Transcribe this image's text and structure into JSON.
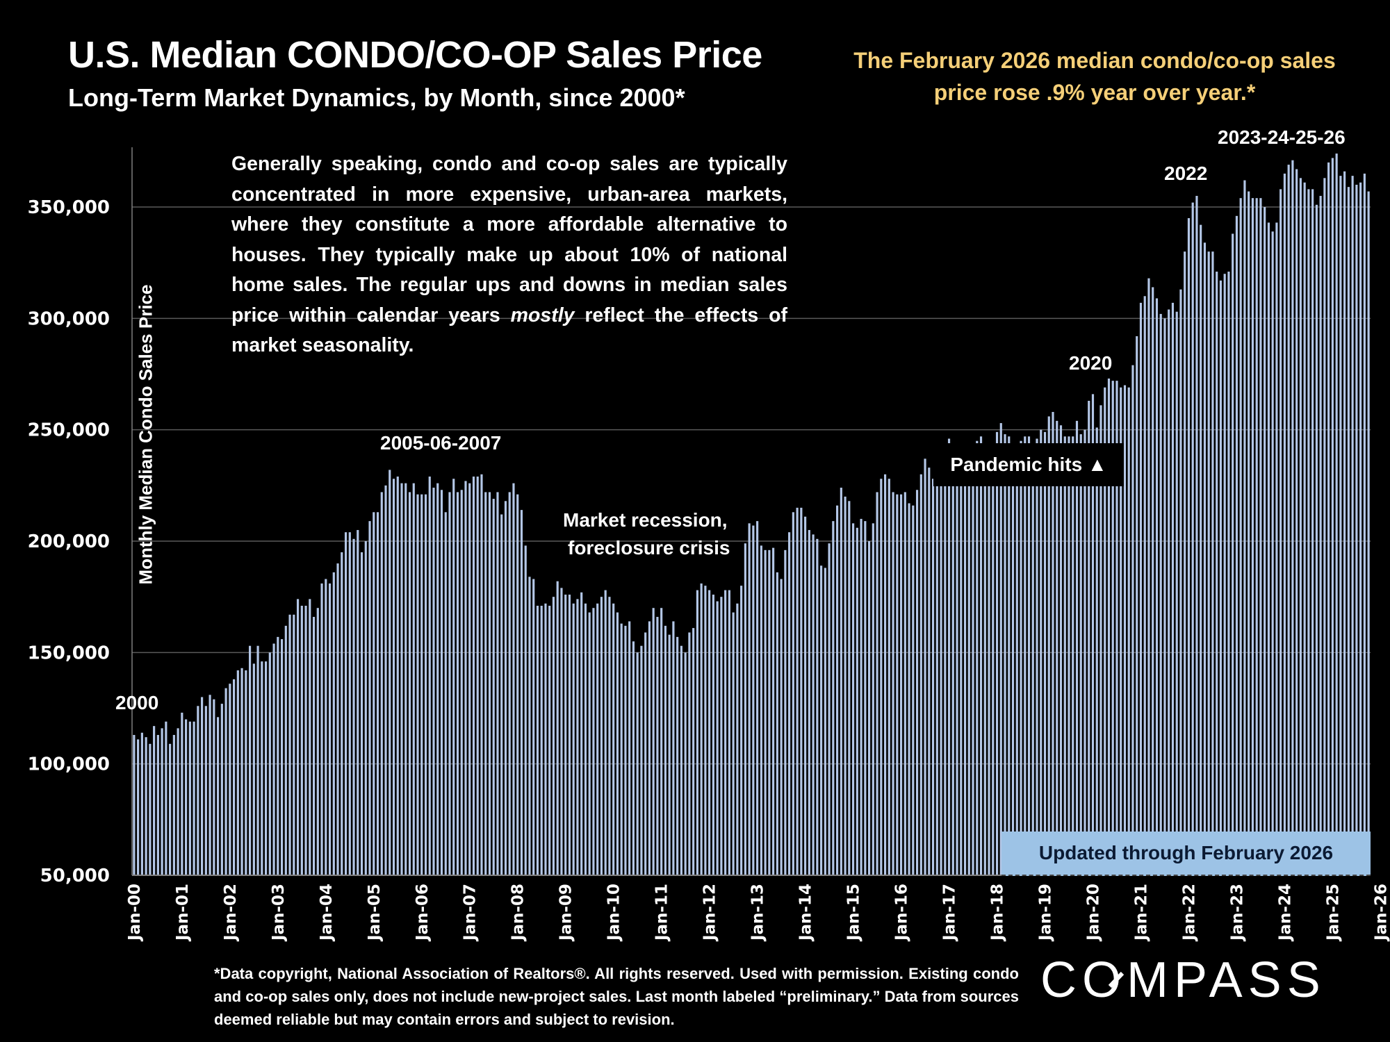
{
  "header": {
    "title": "U.S. Median CONDO/CO-OP Sales Price",
    "subtitle": "Long-Term Market Dynamics, by Month, since 2000*",
    "headline_line1": "The February 2026 median condo/co-op sales",
    "headline_line2": "price rose .9% year over year.*",
    "headline_color": "#f5cf78"
  },
  "note": {
    "text_before_italic": "Generally speaking, condo and co-op sales are typically concentrated in more expensive, urban-area markets, where they constitute a more affordable alternative to houses. They typically make up about 10% of national home sales. The regular ups and downs in median sales price within calendar years ",
    "italic": "mostly",
    "text_after_italic": " reflect the effects of market seasonality."
  },
  "annotations": {
    "y2000": "2000",
    "peak_2005_2007": "2005-06-2007",
    "recession": "Market recession,",
    "recession_line2": "foreclosure crisis",
    "pandemic": "Pandemic hits",
    "pandemic_icon": "▲",
    "y2020": "2020",
    "y2022": "2022",
    "y2023_26": "2023-24-25-26",
    "updated": "Updated through February 2026"
  },
  "footer": {
    "text": "*Data copyright, National Association of Realtors®. All rights reserved. Used with permission. Existing condo and co-op sales only, does  not include new-project sales. Last month labeled “preliminary.” Data from sources deemed reliable but may contain errors and subject to revision."
  },
  "brand": {
    "logo_text": "COMPASS"
  },
  "chart_data": {
    "type": "bar",
    "title": "U.S. Median CONDO/CO-OP Sales Price",
    "xlabel": "",
    "ylabel": "Monthly Median Condo Sales Price",
    "ylim": [
      50000,
      375000
    ],
    "yticks": [
      50000,
      100000,
      150000,
      200000,
      250000,
      300000,
      350000
    ],
    "ytick_labels": [
      "50,000",
      "100,000",
      "150,000",
      "200,000",
      "250,000",
      "300,000",
      "350,000"
    ],
    "xtick_labels": [
      "Jan-00",
      "Jan-01",
      "Jan-02",
      "Jan-03",
      "Jan-04",
      "Jan-05",
      "Jan-06",
      "Jan-07",
      "Jan-08",
      "Jan-09",
      "Jan-10",
      "Jan-11",
      "Jan-12",
      "Jan-13",
      "Jan-14",
      "Jan-15",
      "Jan-16",
      "Jan-17",
      "Jan-18",
      "Jan-19",
      "Jan-20",
      "Jan-21",
      "Jan-22",
      "Jan-23",
      "Jan-24",
      "Jan-25",
      "Jan-26"
    ],
    "grid": true,
    "bar_color": "#b4c7e7",
    "start_month": "Jan-00",
    "end_month": "Feb-26",
    "series": [
      {
        "name": "Monthly Median Condo Sales Price",
        "values": [
          113000,
          111000,
          114000,
          112000,
          109000,
          117000,
          113000,
          116000,
          119000,
          109000,
          113000,
          116000,
          123000,
          120000,
          119000,
          119000,
          126000,
          130000,
          126000,
          131000,
          129000,
          121000,
          127000,
          134000,
          136000,
          138000,
          142000,
          143000,
          142000,
          153000,
          145000,
          153000,
          146000,
          146000,
          150000,
          154000,
          157000,
          156000,
          162000,
          167000,
          167000,
          174000,
          171000,
          171000,
          174000,
          166000,
          170000,
          181000,
          183000,
          181000,
          186000,
          190000,
          195000,
          204000,
          204000,
          201000,
          205000,
          195000,
          200000,
          209000,
          213000,
          213000,
          222000,
          225000,
          232000,
          228000,
          229000,
          226000,
          226000,
          222000,
          226000,
          221000,
          221000,
          221000,
          229000,
          224000,
          226000,
          223000,
          213000,
          222000,
          228000,
          222000,
          223000,
          227000,
          226000,
          229000,
          229000,
          230000,
          222000,
          222000,
          219000,
          222000,
          212000,
          218000,
          222000,
          226000,
          221000,
          214000,
          198000,
          184000,
          183000,
          171000,
          171000,
          172000,
          171000,
          175000,
          182000,
          179000,
          176000,
          176000,
          172000,
          174000,
          177000,
          172000,
          168000,
          170000,
          172000,
          175000,
          178000,
          175000,
          172000,
          168000,
          163000,
          162000,
          164000,
          155000,
          150000,
          153000,
          159000,
          164000,
          170000,
          166000,
          170000,
          162000,
          158000,
          164000,
          157000,
          153000,
          150000,
          159000,
          161000,
          178000,
          181000,
          180000,
          178000,
          176000,
          173000,
          175000,
          178000,
          178000,
          168000,
          172000,
          180000,
          199000,
          208000,
          207000,
          209000,
          198000,
          196000,
          196000,
          197000,
          186000,
          183000,
          196000,
          204000,
          213000,
          215000,
          215000,
          211000,
          205000,
          203000,
          201000,
          189000,
          188000,
          199000,
          209000,
          216000,
          224000,
          220000,
          218000,
          208000,
          206000,
          210000,
          209000,
          200000,
          208000,
          222000,
          228000,
          230000,
          228000,
          222000,
          221000,
          221000,
          222000,
          217000,
          216000,
          223000,
          230000,
          237000,
          233000,
          228000,
          230000,
          233000,
          237000,
          246000,
          241000,
          236000,
          238000,
          232000,
          233000,
          240000,
          245000,
          247000,
          243000,
          236000,
          240000,
          249000,
          253000,
          248000,
          247000,
          238000,
          240000,
          245000,
          247000,
          247000,
          243000,
          246000,
          250000,
          249000,
          256000,
          258000,
          254000,
          252000,
          247000,
          247000,
          247000,
          254000,
          248000,
          250000,
          263000,
          266000,
          251000,
          261000,
          269000,
          273000,
          272000,
          272000,
          269000,
          270000,
          269000,
          279000,
          292000,
          307000,
          310000,
          318000,
          314000,
          309000,
          302000,
          300000,
          304000,
          307000,
          303000,
          313000,
          330000,
          345000,
          352000,
          355000,
          342000,
          334000,
          330000,
          330000,
          321000,
          317000,
          320000,
          321000,
          338000,
          346000,
          354000,
          362000,
          357000,
          354000,
          354000,
          354000,
          350000,
          343000,
          339000,
          343000,
          358000,
          365000,
          369000,
          371000,
          367000,
          363000,
          361000,
          358000,
          358000,
          351000,
          355000,
          363000,
          370000,
          372000,
          374000,
          364000,
          366000,
          359000,
          364000,
          360000,
          361000,
          365000,
          357000
        ]
      }
    ]
  }
}
